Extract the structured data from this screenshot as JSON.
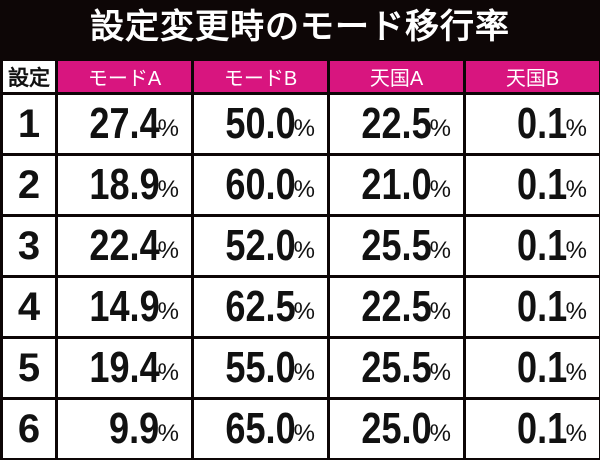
{
  "title": "設定変更時のモード移行率",
  "headers": [
    "設定",
    "モードA",
    "モードB",
    "天国A",
    "天国B"
  ],
  "unit": "%",
  "rows": [
    {
      "setting": "1",
      "values": [
        "27.4",
        "50.0",
        "22.5",
        "0.1"
      ]
    },
    {
      "setting": "2",
      "values": [
        "18.9",
        "60.0",
        "21.0",
        "0.1"
      ]
    },
    {
      "setting": "3",
      "values": [
        "22.4",
        "52.0",
        "25.5",
        "0.1"
      ]
    },
    {
      "setting": "4",
      "values": [
        "14.9",
        "62.5",
        "22.5",
        "0.1"
      ]
    },
    {
      "setting": "5",
      "values": [
        "19.4",
        "55.0",
        "25.5",
        "0.1"
      ]
    },
    {
      "setting": "6",
      "values": [
        "9.9",
        "65.0",
        "25.0",
        "0.1"
      ]
    }
  ],
  "colors": {
    "header": "#d8157f",
    "background": "#0d0606"
  }
}
